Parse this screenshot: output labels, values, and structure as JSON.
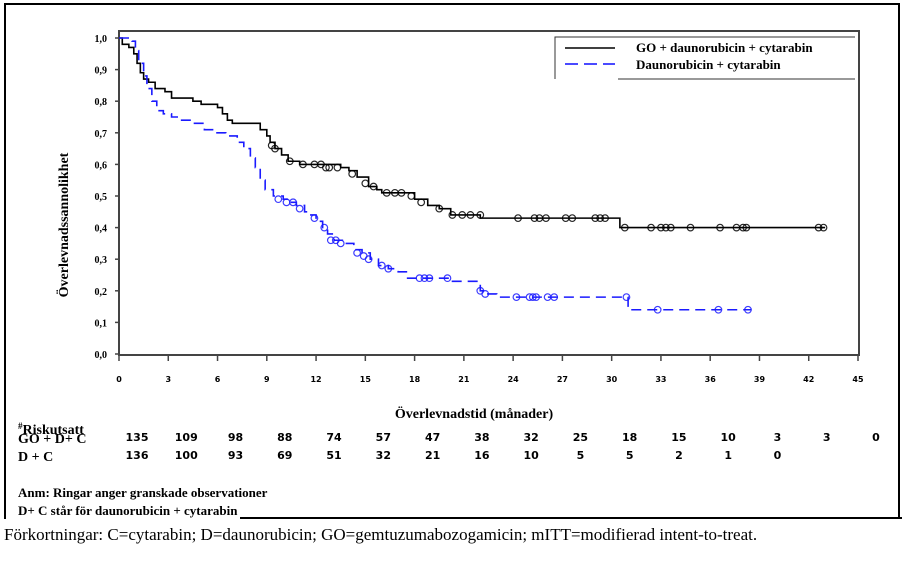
{
  "chart_data": {
    "type": "line",
    "subtype": "kaplan-meier",
    "title": "",
    "xlabel": "Överlevnadstid (månader)",
    "ylabel": "Överlevnadssannolikhet",
    "xlim": [
      0,
      45
    ],
    "ylim": [
      0,
      1
    ],
    "xticks": [
      "0",
      "3",
      "6",
      "9",
      "12",
      "15",
      "18",
      "21",
      "24",
      "27",
      "30",
      "33",
      "36",
      "39",
      "42",
      "45"
    ],
    "yticks": [
      "0,0",
      "0,1",
      "0,2",
      "0,3",
      "0,4",
      "0,5",
      "0,6",
      "0,7",
      "0,8",
      "0,9",
      "1,0"
    ],
    "grid": false,
    "legend_position": "top-right",
    "series": [
      {
        "name": "GO + daunorubicin + cytarabin",
        "color": "#000000",
        "style": "solid",
        "steps": [
          [
            0,
            1.0
          ],
          [
            0.2,
            0.98
          ],
          [
            0.6,
            0.97
          ],
          [
            0.9,
            0.95
          ],
          [
            1.1,
            0.92
          ],
          [
            1.3,
            0.89
          ],
          [
            1.5,
            0.87
          ],
          [
            1.8,
            0.86
          ],
          [
            2.2,
            0.84
          ],
          [
            2.8,
            0.83
          ],
          [
            3.2,
            0.81
          ],
          [
            4.0,
            0.81
          ],
          [
            4.5,
            0.8
          ],
          [
            5.0,
            0.79
          ],
          [
            5.6,
            0.79
          ],
          [
            6.0,
            0.78
          ],
          [
            6.3,
            0.76
          ],
          [
            6.6,
            0.74
          ],
          [
            6.9,
            0.73
          ],
          [
            8.2,
            0.73
          ],
          [
            8.6,
            0.71
          ],
          [
            9.0,
            0.69
          ],
          [
            9.2,
            0.67
          ],
          [
            9.5,
            0.65
          ],
          [
            9.9,
            0.63
          ],
          [
            10.3,
            0.61
          ],
          [
            11.0,
            0.6
          ],
          [
            13.5,
            0.59
          ],
          [
            14.0,
            0.58
          ],
          [
            14.5,
            0.56
          ],
          [
            15.2,
            0.53
          ],
          [
            15.7,
            0.52
          ],
          [
            16.0,
            0.51
          ],
          [
            17.5,
            0.51
          ],
          [
            18.0,
            0.49
          ],
          [
            18.8,
            0.47
          ],
          [
            19.5,
            0.46
          ],
          [
            20.2,
            0.44
          ],
          [
            21.0,
            0.44
          ],
          [
            22.0,
            0.43
          ],
          [
            30.0,
            0.43
          ],
          [
            30.5,
            0.4
          ],
          [
            43.0,
            0.4
          ]
        ],
        "censored": [
          [
            9.3,
            0.66
          ],
          [
            9.5,
            0.65
          ],
          [
            10.4,
            0.61
          ],
          [
            11.2,
            0.6
          ],
          [
            11.9,
            0.6
          ],
          [
            12.3,
            0.6
          ],
          [
            12.6,
            0.59
          ],
          [
            12.8,
            0.59
          ],
          [
            13.3,
            0.59
          ],
          [
            14.2,
            0.57
          ],
          [
            15.0,
            0.54
          ],
          [
            15.5,
            0.53
          ],
          [
            16.3,
            0.51
          ],
          [
            16.8,
            0.51
          ],
          [
            17.2,
            0.51
          ],
          [
            17.8,
            0.5
          ],
          [
            18.4,
            0.48
          ],
          [
            19.5,
            0.46
          ],
          [
            20.3,
            0.44
          ],
          [
            20.9,
            0.44
          ],
          [
            21.4,
            0.44
          ],
          [
            22.0,
            0.44
          ],
          [
            24.3,
            0.43
          ],
          [
            25.3,
            0.43
          ],
          [
            25.6,
            0.43
          ],
          [
            26.0,
            0.43
          ],
          [
            27.2,
            0.43
          ],
          [
            27.6,
            0.43
          ],
          [
            29.0,
            0.43
          ],
          [
            29.3,
            0.43
          ],
          [
            29.6,
            0.43
          ],
          [
            30.8,
            0.4
          ],
          [
            32.4,
            0.4
          ],
          [
            33.0,
            0.4
          ],
          [
            33.3,
            0.4
          ],
          [
            33.6,
            0.4
          ],
          [
            34.8,
            0.4
          ],
          [
            36.6,
            0.4
          ],
          [
            37.6,
            0.4
          ],
          [
            38.0,
            0.4
          ],
          [
            38.2,
            0.4
          ],
          [
            42.6,
            0.4
          ],
          [
            42.9,
            0.4
          ]
        ]
      },
      {
        "name": "Daunorubicin + cytarabin",
        "color": "#1a1aff",
        "style": "dashed",
        "steps": [
          [
            0,
            1.0
          ],
          [
            0.8,
            0.99
          ],
          [
            1.0,
            0.96
          ],
          [
            1.2,
            0.92
          ],
          [
            1.5,
            0.88
          ],
          [
            1.7,
            0.84
          ],
          [
            2.0,
            0.8
          ],
          [
            2.3,
            0.77
          ],
          [
            2.7,
            0.76
          ],
          [
            3.2,
            0.75
          ],
          [
            3.6,
            0.74
          ],
          [
            4.4,
            0.73
          ],
          [
            5.2,
            0.71
          ],
          [
            5.8,
            0.7
          ],
          [
            6.5,
            0.69
          ],
          [
            7.2,
            0.67
          ],
          [
            7.6,
            0.65
          ],
          [
            8.0,
            0.62
          ],
          [
            8.3,
            0.59
          ],
          [
            8.6,
            0.55
          ],
          [
            8.9,
            0.52
          ],
          [
            9.4,
            0.5
          ],
          [
            10.0,
            0.49
          ],
          [
            10.4,
            0.48
          ],
          [
            10.8,
            0.47
          ],
          [
            11.3,
            0.45
          ],
          [
            11.6,
            0.44
          ],
          [
            12.0,
            0.42
          ],
          [
            12.4,
            0.4
          ],
          [
            12.7,
            0.38
          ],
          [
            13.1,
            0.36
          ],
          [
            13.6,
            0.35
          ],
          [
            14.3,
            0.33
          ],
          [
            14.8,
            0.32
          ],
          [
            15.3,
            0.3
          ],
          [
            15.8,
            0.28
          ],
          [
            16.4,
            0.27
          ],
          [
            17.0,
            0.26
          ],
          [
            17.5,
            0.24
          ],
          [
            20.0,
            0.24
          ],
          [
            20.2,
            0.23
          ],
          [
            21.7,
            0.23
          ],
          [
            22.0,
            0.2
          ],
          [
            22.4,
            0.19
          ],
          [
            23.0,
            0.18
          ],
          [
            31.0,
            0.18
          ],
          [
            31.0,
            0.14
          ],
          [
            38.5,
            0.14
          ]
        ],
        "censored": [
          [
            9.7,
            0.49
          ],
          [
            10.2,
            0.48
          ],
          [
            10.6,
            0.48
          ],
          [
            11.0,
            0.46
          ],
          [
            11.9,
            0.43
          ],
          [
            12.5,
            0.4
          ],
          [
            12.9,
            0.36
          ],
          [
            13.2,
            0.36
          ],
          [
            13.5,
            0.35
          ],
          [
            14.5,
            0.32
          ],
          [
            14.9,
            0.31
          ],
          [
            15.2,
            0.3
          ],
          [
            16.0,
            0.28
          ],
          [
            16.4,
            0.27
          ],
          [
            18.3,
            0.24
          ],
          [
            18.6,
            0.24
          ],
          [
            18.9,
            0.24
          ],
          [
            20.0,
            0.24
          ],
          [
            22.0,
            0.2
          ],
          [
            22.3,
            0.19
          ],
          [
            24.2,
            0.18
          ],
          [
            25.0,
            0.18
          ],
          [
            25.2,
            0.18
          ],
          [
            25.4,
            0.18
          ],
          [
            26.1,
            0.18
          ],
          [
            26.5,
            0.18
          ],
          [
            30.9,
            0.18
          ],
          [
            32.8,
            0.14
          ],
          [
            36.5,
            0.14
          ],
          [
            38.3,
            0.14
          ]
        ]
      }
    ],
    "risk_table": {
      "header": "Riskutsatt",
      "header_marker": "#",
      "times": [
        0,
        3,
        6,
        9,
        12,
        15,
        18,
        21,
        24,
        27,
        30,
        33,
        36,
        39,
        42,
        45
      ],
      "rows": [
        {
          "label": "GO + D+ C",
          "values": [
            "135",
            "109",
            "98",
            "88",
            "74",
            "57",
            "47",
            "38",
            "32",
            "25",
            "18",
            "15",
            "10",
            "3",
            "3",
            "0"
          ]
        },
        {
          "label": "D + C",
          "values": [
            "136",
            "100",
            "93",
            "69",
            "51",
            "32",
            "21",
            "16",
            "10",
            "5",
            "5",
            "2",
            "1",
            "0"
          ]
        }
      ]
    }
  },
  "notes": {
    "line1": "Anm: Ringar anger granskade observationer",
    "line2": "D+ C står för daunorubicin + cytarabin"
  },
  "footer": "Förkortningar: C=cytarabin; D=daunorubicin; GO=gemtuzumabozogamicin; mITT=modifierad intent-to-treat."
}
